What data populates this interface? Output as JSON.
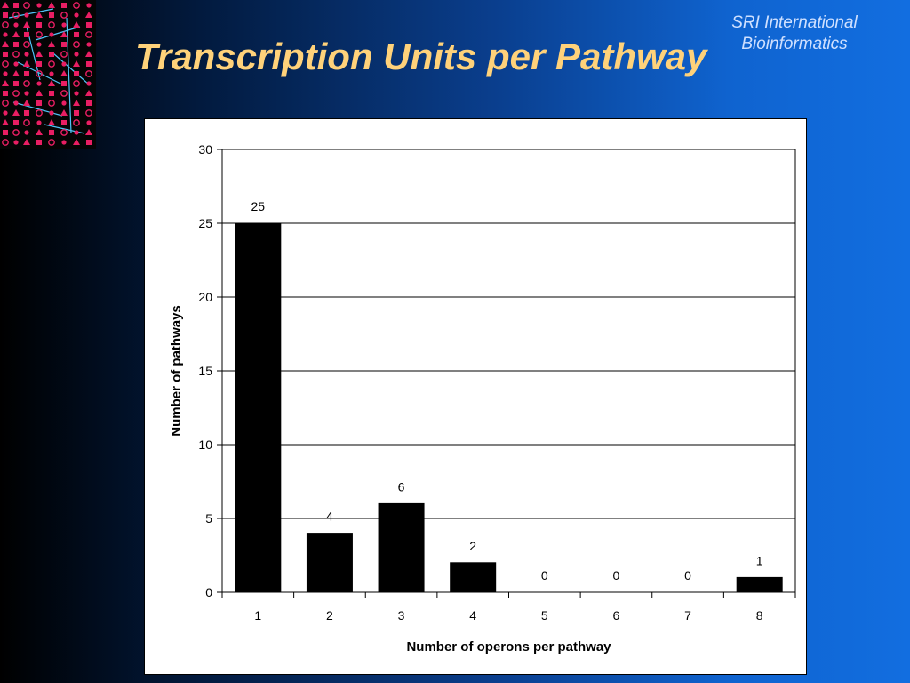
{
  "slide": {
    "title": "Transcription Units per Pathway",
    "branding_line1": "SRI International",
    "branding_line2": "Bioinformatics",
    "decoration_icon": "pathway-diagram-icon",
    "colors": {
      "title": "#ffd27a",
      "branding": "#cfe0ff",
      "bars": "#000000",
      "decoration_nodes": "#e91e63",
      "decoration_edges": "#4fc3f7"
    }
  },
  "chart_data": {
    "type": "bar",
    "categories": [
      "1",
      "2",
      "3",
      "4",
      "5",
      "6",
      "7",
      "8"
    ],
    "values": [
      25,
      4,
      6,
      2,
      0,
      0,
      0,
      1
    ],
    "data_labels": [
      "25",
      "4",
      "6",
      "2",
      "0",
      "0",
      "0",
      "1"
    ],
    "xlabel": "Number of operons per pathway",
    "ylabel": "Number of pathways",
    "ylim": [
      0,
      30
    ],
    "yticks": [
      0,
      5,
      10,
      15,
      20,
      25,
      30
    ],
    "ytick_labels": [
      "0",
      "5",
      "10",
      "15",
      "20",
      "25",
      "30"
    ],
    "grid": true,
    "legend": false,
    "bar_color": "#000000"
  }
}
